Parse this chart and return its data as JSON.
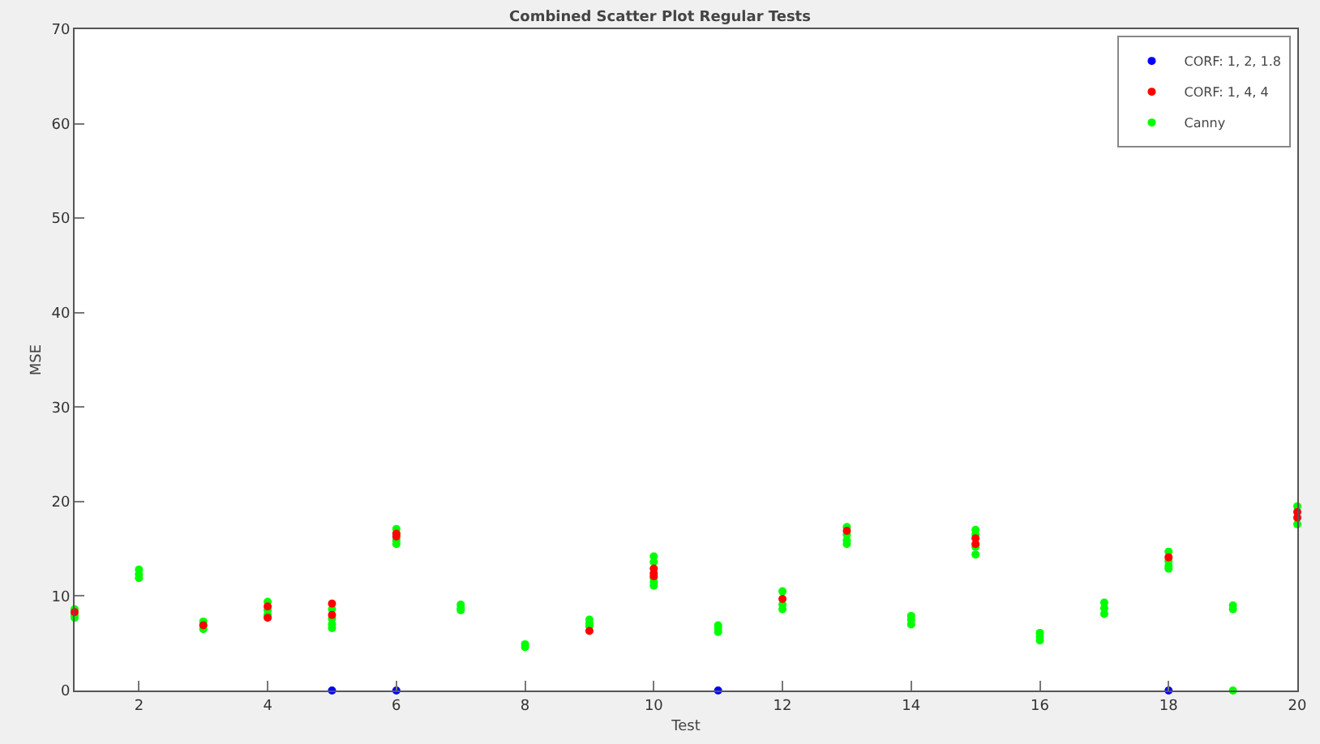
{
  "chart_data": {
    "type": "scatter",
    "title": "Combined Scatter Plot Regular Tests",
    "xlabel": "Test",
    "ylabel": "MSE",
    "xlim": [
      1,
      20
    ],
    "ylim": [
      0,
      70
    ],
    "xticks": [
      2,
      4,
      6,
      8,
      10,
      12,
      14,
      16,
      18,
      20
    ],
    "yticks": [
      0,
      10,
      20,
      30,
      40,
      50,
      60,
      70
    ],
    "grid": false,
    "legend": "top right",
    "marker": "circle",
    "series": [
      {
        "name": "CORF: 1, 2, 1.8",
        "color": "#0000ff",
        "x": [
          5,
          6,
          11,
          18
        ],
        "values": [
          0,
          0,
          0,
          0
        ]
      },
      {
        "name": "CORF: 1, 4, 4",
        "color": "#ff0000",
        "x": [
          1,
          3,
          4,
          4,
          5,
          5,
          6,
          6,
          9,
          10,
          10,
          10,
          12,
          13,
          15,
          15,
          18,
          20,
          20
        ],
        "values": [
          8.3,
          6.9,
          8.9,
          7.7,
          9.2,
          8.0,
          16.6,
          16.3,
          6.3,
          12.9,
          12.4,
          12.1,
          9.7,
          16.9,
          16.1,
          15.5,
          14.1,
          18.9,
          18.3
        ]
      },
      {
        "name": "Canny",
        "color": "#00ff00",
        "x": [
          1,
          1,
          1,
          2,
          2,
          2,
          3,
          3,
          3,
          4,
          4,
          4,
          4,
          5,
          5,
          5,
          5,
          6,
          6,
          6,
          6,
          7,
          7,
          7,
          8,
          8,
          9,
          9,
          9,
          10,
          10,
          10,
          10,
          10,
          11,
          11,
          11,
          12,
          12,
          12,
          13,
          13,
          13,
          13,
          14,
          14,
          14,
          15,
          15,
          15,
          15,
          16,
          16,
          16,
          17,
          17,
          17,
          18,
          18,
          18,
          18,
          19,
          19,
          19,
          20,
          20
        ],
        "values": [
          8.6,
          8.0,
          7.7,
          12.8,
          12.3,
          11.9,
          7.3,
          6.9,
          6.5,
          9.4,
          8.5,
          8.0,
          7.9,
          8.6,
          7.6,
          7.0,
          6.6,
          17.1,
          16.6,
          15.9,
          15.5,
          9.1,
          8.7,
          8.5,
          4.9,
          4.6,
          7.5,
          7.1,
          6.8,
          14.2,
          13.6,
          11.9,
          11.5,
          11.1,
          6.9,
          6.6,
          6.2,
          10.5,
          9.1,
          8.6,
          17.3,
          16.5,
          15.9,
          15.5,
          7.9,
          7.5,
          7.0,
          17.0,
          16.5,
          15.2,
          14.4,
          6.1,
          5.7,
          5.3,
          9.3,
          8.7,
          8.1,
          14.7,
          13.7,
          13.2,
          12.9,
          9.0,
          8.6,
          0,
          19.5,
          17.6
        ]
      }
    ]
  }
}
